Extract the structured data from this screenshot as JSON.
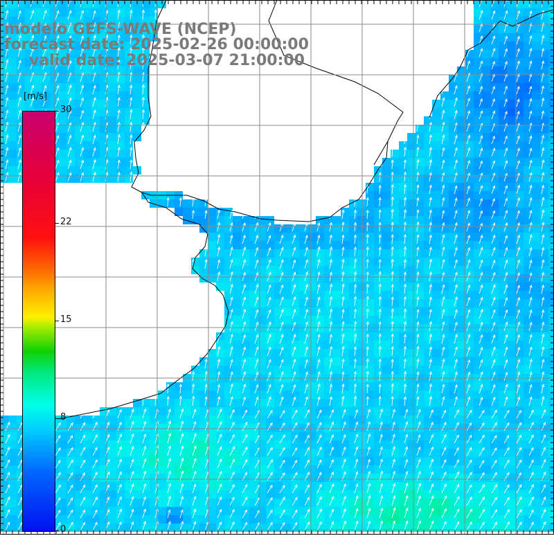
{
  "title": {
    "line1": "modelo GEFS-WAVE (NCEP)",
    "line2": "forecast date: 2025-02-26 00:00:00",
    "line3": "valid date: 2025-03-07 21:00:00"
  },
  "colorbar": {
    "unit": "[m/s]",
    "min": 0,
    "max": 30,
    "ticks": [
      "30",
      "22",
      "15",
      "8",
      "0"
    ],
    "tick_values": [
      30,
      22,
      15,
      8,
      0
    ],
    "colors": [
      "#0010f0",
      "#0066ff",
      "#00ccff",
      "#00ffea",
      "#11d200",
      "#fff000",
      "#ff6000",
      "#ff1010",
      "#c8006e"
    ]
  },
  "map": {
    "land_color": "#ffffff",
    "coastline_color": "#000000",
    "grid_color": "#909090",
    "arrow_color": "#ffffff",
    "wind_direction": "from south-southwest (arrows pointing north-northeast)",
    "gridlines": true
  }
}
